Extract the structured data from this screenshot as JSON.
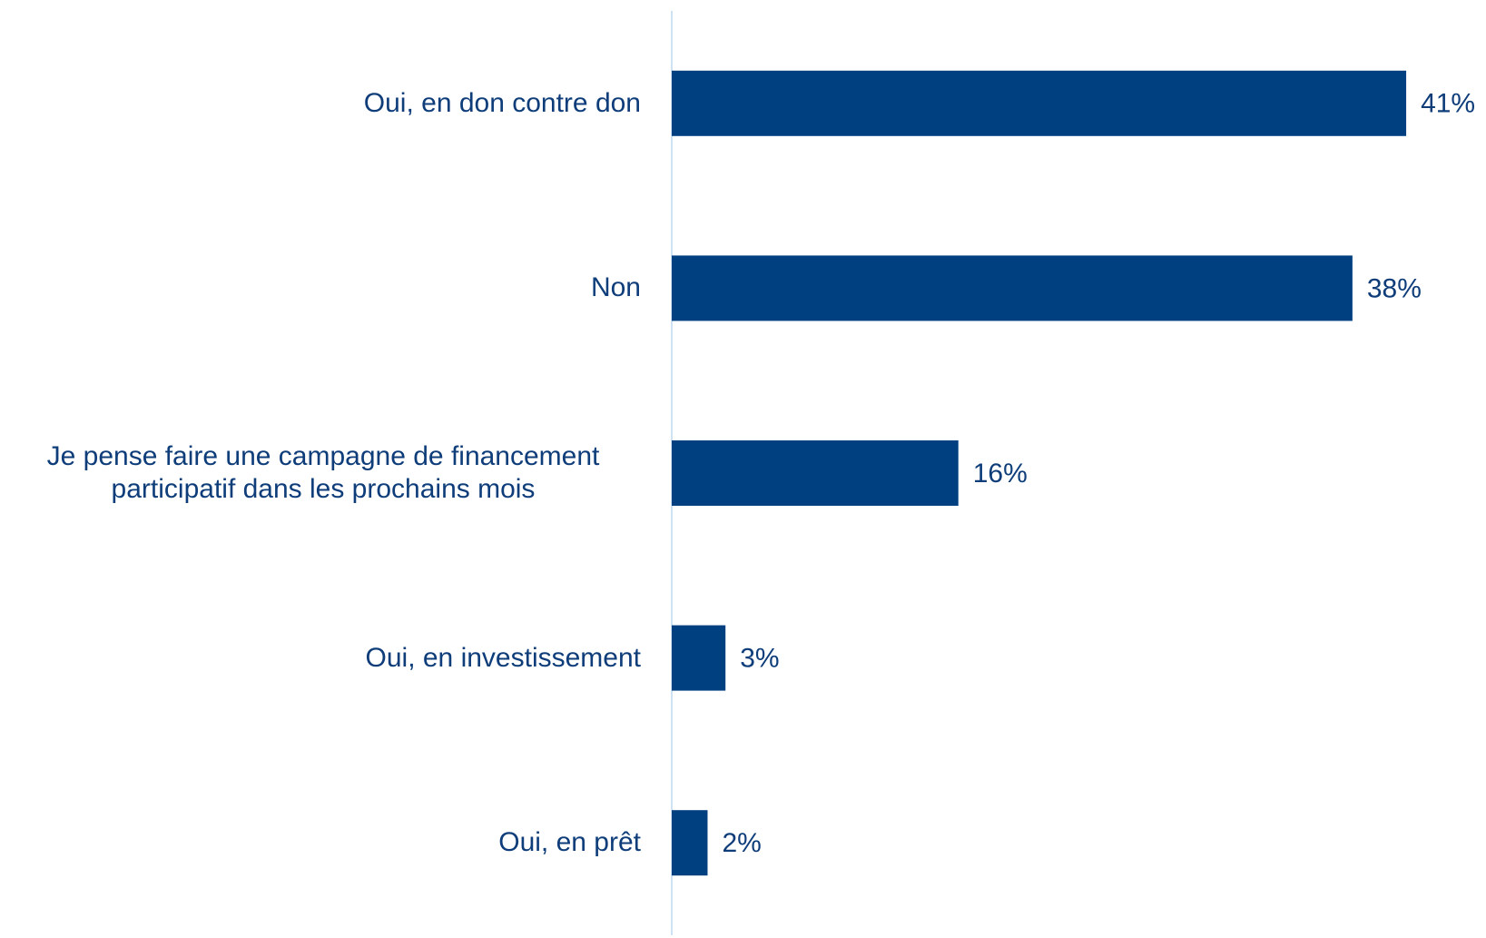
{
  "chart_data": {
    "type": "bar",
    "orientation": "horizontal",
    "categories": [
      "Oui, en don contre don",
      "Non",
      "Je pense faire une campagne de financement participatif dans les prochains mois",
      "Oui, en investissement",
      "Oui, en prêt"
    ],
    "values": [
      41,
      38,
      16,
      3,
      2
    ],
    "value_labels": [
      "41%",
      "38%",
      "16%",
      "3%",
      "2%"
    ],
    "color": "#003f80",
    "xlim": [
      0,
      45
    ]
  }
}
